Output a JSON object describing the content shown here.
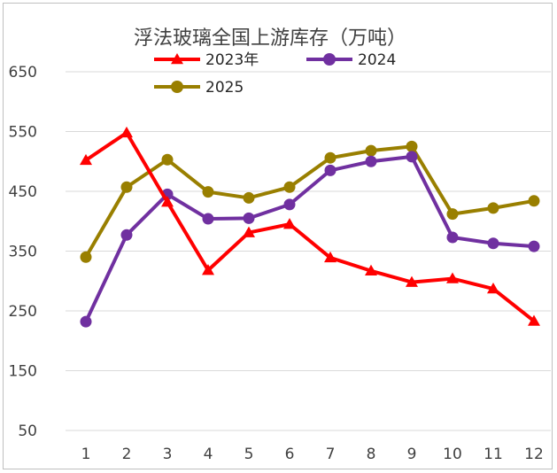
{
  "chart_data": {
    "type": "line",
    "title": "浮法玻璃全国上游库存（万吨）",
    "xlabel": "",
    "ylabel": "",
    "categories": [
      "1",
      "2",
      "3",
      "4",
      "5",
      "6",
      "7",
      "8",
      "9",
      "10",
      "11",
      "12"
    ],
    "y_ticks": [
      "650",
      "550",
      "450",
      "350",
      "250",
      "150",
      "50"
    ],
    "ylim": [
      50,
      650
    ],
    "grid": true,
    "legend_position": "top",
    "series": [
      {
        "name": "2023年",
        "color": "#ff0000",
        "marker": "triangle",
        "values": [
          502,
          548,
          432,
          318,
          381,
          395,
          339,
          317,
          298,
          304,
          287,
          233
        ]
      },
      {
        "name": "2024",
        "color": "#7030a0",
        "marker": "circle",
        "values": [
          232,
          377,
          445,
          404,
          405,
          428,
          485,
          500,
          508,
          373,
          363,
          358
        ]
      },
      {
        "name": "2025",
        "color": "#997f00",
        "marker": "circle",
        "values": [
          340,
          457,
          503,
          449,
          439,
          457,
          506,
          518,
          525,
          412,
          422,
          434
        ]
      }
    ]
  }
}
